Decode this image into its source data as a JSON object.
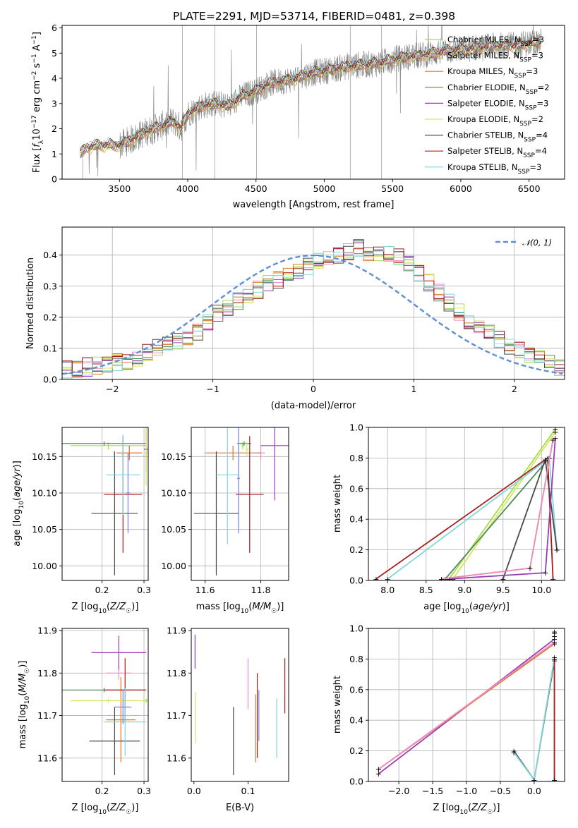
{
  "title": "PLATE=2291, MJD=53714, FIBERID=0481, z=0.398",
  "colors": {
    "chab_miles": "#a6dc4a",
    "salp_miles": "#ec8ec0",
    "krou_miles": "#e0772f",
    "chab_elodie": "#4d8b5c",
    "salp_elodie": "#9a3db5",
    "krou_elodie": "#d5e85a",
    "chab_stelib": "#4a4a4a",
    "salp_stelib": "#a81b1b",
    "krou_stelib": "#7fd6dc",
    "extra_blue": "#6f7ff0",
    "data": "#808080",
    "gauss": "#5b8fd6"
  },
  "legend": [
    {
      "key": "chab_miles",
      "text": "Chabrier MILES, N",
      "sub": "SSP",
      "val": "=3"
    },
    {
      "key": "salp_miles",
      "text": "Salpeter MILES, N",
      "sub": "SSP",
      "val": "=3"
    },
    {
      "key": "krou_miles",
      "text": "Kroupa MILES, N",
      "sub": "SSP",
      "val": "=3"
    },
    {
      "key": "chab_elodie",
      "text": "Chabrier ELODIE, N",
      "sub": "SSP",
      "val": "=2"
    },
    {
      "key": "salp_elodie",
      "text": "Salpeter ELODIE, N",
      "sub": "SSP",
      "val": "=3"
    },
    {
      "key": "krou_elodie",
      "text": "Kroupa ELODIE, N",
      "sub": "SSP",
      "val": "=2"
    },
    {
      "key": "chab_stelib",
      "text": "Chabrier STELIB, N",
      "sub": "SSP",
      "val": "=4"
    },
    {
      "key": "salp_stelib",
      "text": "Salpeter STELIB, N",
      "sub": "SSP",
      "val": "=4"
    },
    {
      "key": "krou_stelib",
      "text": "Kroupa STELIB, N",
      "sub": "SSP",
      "val": "=3"
    }
  ],
  "chart_data": [
    {
      "id": "spectrum",
      "type": "line",
      "xlabel": "wavelength [Angstrom, rest frame]",
      "ylabel": "Flux [f_λ 10^-17 erg cm^-2 s^-1 A^-1]",
      "xlim": [
        3080,
        6760
      ],
      "ylim": [
        0,
        6.1
      ],
      "xticks": [
        3500,
        4000,
        4500,
        5000,
        5500,
        6000,
        6500
      ],
      "yticks": [
        0,
        1,
        2,
        3,
        4,
        5,
        6
      ],
      "xrange_data": [
        3210,
        6590
      ],
      "continuum": [
        [
          3210,
          1.0
        ],
        [
          3260,
          1.25
        ],
        [
          3350,
          1.35
        ],
        [
          3500,
          1.35
        ],
        [
          3600,
          1.6
        ],
        [
          3700,
          1.9
        ],
        [
          3800,
          2.1
        ],
        [
          3900,
          2.3
        ],
        [
          3950,
          2.0
        ],
        [
          4000,
          2.6
        ],
        [
          4100,
          2.9
        ],
        [
          4200,
          3.0
        ],
        [
          4300,
          2.9
        ],
        [
          4400,
          3.3
        ],
        [
          4500,
          3.5
        ],
        [
          4600,
          3.8
        ],
        [
          4700,
          3.9
        ],
        [
          4800,
          4.0
        ],
        [
          4900,
          4.2
        ],
        [
          5000,
          4.3
        ],
        [
          5100,
          4.4
        ],
        [
          5200,
          4.5
        ],
        [
          5300,
          4.55
        ],
        [
          5400,
          4.6
        ],
        [
          5500,
          4.75
        ],
        [
          5600,
          4.85
        ],
        [
          5700,
          4.9
        ],
        [
          5800,
          5.0
        ],
        [
          5900,
          5.1
        ],
        [
          6000,
          5.15
        ],
        [
          6100,
          5.2
        ],
        [
          6200,
          5.25
        ],
        [
          6300,
          5.3
        ],
        [
          6400,
          5.3
        ],
        [
          6500,
          5.4
        ],
        [
          6590,
          5.45
        ]
      ],
      "grid": false,
      "legend_position": "top-right"
    },
    {
      "id": "residuals",
      "type": "histogram",
      "xlabel": "(data-model)/error",
      "ylabel": "Normed distribution",
      "xlim": [
        -2.5,
        2.5
      ],
      "ylim": [
        0,
        0.49
      ],
      "xticks": [
        -2,
        -1,
        0,
        1,
        2
      ],
      "yticks": [
        0.0,
        0.1,
        0.2,
        0.3,
        0.4
      ],
      "bin_edges_start": -2.5,
      "bin_width": 0.1,
      "base_hist": [
        0.03,
        0.035,
        0.04,
        0.045,
        0.05,
        0.055,
        0.06,
        0.07,
        0.085,
        0.1,
        0.11,
        0.12,
        0.13,
        0.15,
        0.18,
        0.21,
        0.23,
        0.25,
        0.27,
        0.29,
        0.31,
        0.32,
        0.34,
        0.35,
        0.36,
        0.38,
        0.39,
        0.4,
        0.41,
        0.42,
        0.41,
        0.41,
        0.4,
        0.39,
        0.37,
        0.34,
        0.31,
        0.28,
        0.25,
        0.22,
        0.19,
        0.17,
        0.15,
        0.13,
        0.11,
        0.09,
        0.075,
        0.065,
        0.05,
        0.04
      ],
      "legend_label": "𝒩(0, 1)",
      "grid": true,
      "legend_position": "top-right"
    },
    {
      "id": "age_vs_Z",
      "type": "errorbar",
      "xlabel": "Z [log10(Z/Z☉)]",
      "ylabel": "age  [log10(age/yr)]",
      "xlim": [
        0.105,
        0.31
      ],
      "ylim": [
        9.98,
        10.19
      ],
      "xticks": [
        0.2,
        0.3
      ],
      "yticks": [
        10.0,
        10.05,
        10.1,
        10.15
      ],
      "points": [
        {
          "key": "chab_miles",
          "x": 0.215,
          "xe": 0.09,
          "y": 10.165,
          "ye": 0.005
        },
        {
          "key": "salp_miles",
          "x": 0.265,
          "xe": 0.03,
          "y": 10.155,
          "ye": 0.01
        },
        {
          "key": "krou_miles",
          "x": 0.265,
          "xe": 0.03,
          "y": 10.155,
          "ye": 0.01
        },
        {
          "key": "chab_elodie",
          "x": 0.205,
          "xe": 0.1,
          "y": 10.168,
          "ye": 0.003
        },
        {
          "key": "salp_elodie",
          "x": 0.305,
          "xe": 0.005,
          "y": 10.16,
          "ye": 0.03
        },
        {
          "key": "krou_elodie",
          "x": 0.305,
          "xe": 0.005,
          "y": 10.155,
          "ye": 0.045
        },
        {
          "key": "chab_stelib",
          "x": 0.23,
          "xe": 0.055,
          "y": 10.072,
          "ye": 0.085
        },
        {
          "key": "salp_stelib",
          "x": 0.25,
          "xe": 0.045,
          "y": 10.098,
          "ye": 0.08
        },
        {
          "key": "krou_stelib",
          "x": 0.25,
          "xe": 0.04,
          "y": 10.125,
          "ye": 0.055
        },
        {
          "key": "extra_blue",
          "x": 0.262,
          "xe": 0.005,
          "y": 10.1,
          "ye": 0.055
        }
      ],
      "grid": true
    },
    {
      "id": "age_vs_mass",
      "type": "errorbar",
      "xlabel": "mass [log10(M/M☉)]",
      "ylabel": "",
      "xlim": [
        11.55,
        11.9
      ],
      "ylim": [
        9.98,
        10.19
      ],
      "xticks": [
        11.6,
        11.8
      ],
      "yticks": [
        10.0,
        10.05,
        10.1,
        10.15
      ],
      "points": [
        {
          "key": "chab_miles",
          "x": 11.735,
          "xe": 0.005,
          "y": 10.165,
          "ye": 0.005
        },
        {
          "key": "salp_miles",
          "x": 11.8,
          "xe": 0.015,
          "y": 10.155,
          "ye": 0.01
        },
        {
          "key": "krou_miles",
          "x": 11.7,
          "xe": 0.1,
          "y": 10.155,
          "ye": 0.01
        },
        {
          "key": "chab_elodie",
          "x": 11.74,
          "xe": 0.025,
          "y": 10.168,
          "ye": 0.003
        },
        {
          "key": "salp_elodie",
          "x": 11.85,
          "xe": 0.05,
          "y": 10.165,
          "ye": 0.075
        },
        {
          "key": "krou_elodie",
          "x": 11.75,
          "xe": 0.005,
          "y": 10.16,
          "ye": 0.01
        },
        {
          "key": "chab_stelib",
          "x": 11.64,
          "xe": 0.08,
          "y": 10.072,
          "ye": 0.085
        },
        {
          "key": "salp_stelib",
          "x": 11.76,
          "xe": 0.05,
          "y": 10.098,
          "ye": 0.08
        },
        {
          "key": "krou_stelib",
          "x": 11.68,
          "xe": 0.04,
          "y": 10.125,
          "ye": 0.095
        },
        {
          "key": "extra_blue",
          "x": 11.72,
          "xe": 0.005,
          "y": 10.12,
          "ye": 0.075
        }
      ],
      "grid": true
    },
    {
      "id": "weight_vs_age",
      "type": "line",
      "xlabel": "age  [log10(age/yr)]",
      "ylabel": "mass weight",
      "xlim": [
        7.75,
        10.3
      ],
      "ylim": [
        0,
        1.0
      ],
      "xticks": [
        8.0,
        8.5,
        9.0,
        9.5,
        10.0
      ],
      "yticks": [
        0.0,
        0.2,
        0.4,
        0.6,
        0.8,
        1.0
      ],
      "series": [
        {
          "key": "chab_miles",
          "points": [
            [
              8.8,
              0.01
            ],
            [
              10.18,
              0.99
            ]
          ]
        },
        {
          "key": "krou_elodie",
          "points": [
            [
              8.85,
              0.01
            ],
            [
              10.18,
              0.97
            ]
          ]
        },
        {
          "key": "chab_elodie",
          "points": [
            [
              8.75,
              0.01
            ],
            [
              10.1,
              0.8
            ]
          ]
        },
        {
          "key": "salp_stelib",
          "points": [
            [
              7.85,
              0.01
            ],
            [
              10.08,
              0.8
            ],
            [
              10.15,
              0.01
            ]
          ]
        },
        {
          "key": "krou_stelib",
          "points": [
            [
              8.0,
              0.01
            ],
            [
              10.1,
              0.8
            ],
            [
              10.2,
              0.2
            ]
          ]
        },
        {
          "key": "chab_stelib",
          "points": [
            [
              9.5,
              0.01
            ],
            [
              10.05,
              0.79
            ],
            [
              10.2,
              0.2
            ]
          ]
        },
        {
          "key": "salp_elodie",
          "points": [
            [
              8.8,
              0.01
            ],
            [
              10.05,
              0.05
            ],
            [
              10.18,
              0.93
            ]
          ]
        },
        {
          "key": "krou_miles",
          "points": [
            [
              8.7,
              0.01
            ],
            [
              9.85,
              0.08
            ],
            [
              10.15,
              0.92
            ]
          ]
        },
        {
          "key": "salp_miles",
          "points": [
            [
              8.7,
              0.01
            ],
            [
              9.85,
              0.08
            ],
            [
              10.15,
              0.92
            ]
          ]
        }
      ],
      "grid": true
    },
    {
      "id": "mass_vs_Z",
      "type": "errorbar",
      "xlabel": "Z [log10(Z/Z☉)]",
      "ylabel": "mass [log10(M/M☉)]",
      "xlim": [
        0.105,
        0.31
      ],
      "ylim": [
        11.545,
        11.905
      ],
      "xticks": [
        0.2,
        0.3
      ],
      "yticks": [
        11.6,
        11.7,
        11.8,
        11.9
      ],
      "points": [
        {
          "key": "chab_miles",
          "x": 0.305,
          "xe": 0.005,
          "y": 11.735,
          "ye": 0.005
        },
        {
          "key": "salp_miles",
          "x": 0.24,
          "xe": 0.03,
          "y": 11.8,
          "ye": 0.015
        },
        {
          "key": "krou_miles",
          "x": 0.245,
          "xe": 0.035,
          "y": 11.69,
          "ye": 0.1
        },
        {
          "key": "chab_elodie",
          "x": 0.205,
          "xe": 0.1,
          "y": 11.76,
          "ye": 0.005
        },
        {
          "key": "salp_elodie",
          "x": 0.24,
          "xe": 0.065,
          "y": 11.848,
          "ye": 0.04
        },
        {
          "key": "krou_elodie",
          "x": 0.215,
          "xe": 0.09,
          "y": 11.735,
          "ye": 0.005
        },
        {
          "key": "chab_stelib",
          "x": 0.23,
          "xe": 0.06,
          "y": 11.64,
          "ye": 0.08
        },
        {
          "key": "salp_stelib",
          "x": 0.255,
          "xe": 0.05,
          "y": 11.76,
          "ye": 0.075
        },
        {
          "key": "krou_stelib",
          "x": 0.255,
          "xe": 0.05,
          "y": 11.685,
          "ye": 0.08
        },
        {
          "key": "extra_blue",
          "x": 0.25,
          "xe": 0.02,
          "y": 11.72,
          "ye": 0.04
        }
      ],
      "grid": true
    },
    {
      "id": "mass_vs_ebv",
      "type": "errorbar",
      "xlabel": "E(B-V)",
      "ylabel": "",
      "xlim": [
        -0.005,
        0.175
      ],
      "ylim": [
        11.545,
        11.905
      ],
      "xticks": [
        0.0,
        0.1
      ],
      "yticks": [
        11.6,
        11.7,
        11.8,
        11.9
      ],
      "points": [
        {
          "key": "salp_elodie",
          "x": 0.002,
          "xe": 0,
          "y": 11.85,
          "ye": 0.04
        },
        {
          "key": "krou_elodie",
          "x": 0.003,
          "xe": 0,
          "y": 11.695,
          "ye": 0.06
        },
        {
          "key": "chab_stelib",
          "x": 0.073,
          "xe": 0,
          "y": 11.64,
          "ye": 0.08
        },
        {
          "key": "salp_miles",
          "x": 0.1,
          "xe": 0,
          "y": 11.775,
          "ye": 0.06
        },
        {
          "key": "krou_miles",
          "x": 0.114,
          "xe": 0,
          "y": 11.67,
          "ye": 0.08
        },
        {
          "key": "extra_blue",
          "x": 0.12,
          "xe": 0,
          "y": 11.7,
          "ye": 0.06
        },
        {
          "key": "salp_stelib",
          "x": 0.117,
          "xe": 0,
          "y": 11.7,
          "ye": 0.1
        },
        {
          "key": "krou_stelib",
          "x": 0.153,
          "xe": 0,
          "y": 11.67,
          "ye": 0.07
        },
        {
          "key": "salp_stelib",
          "x": 0.168,
          "xe": 0,
          "y": 11.77,
          "ye": 0.065
        }
      ],
      "grid": false
    },
    {
      "id": "weight_vs_Z",
      "type": "line",
      "xlabel": "Z [log10(Z/Z☉)]",
      "ylabel": "mass weight",
      "xlim": [
        -2.45,
        0.45
      ],
      "ylim": [
        0,
        1.0
      ],
      "xticks": [
        -2.0,
        -1.5,
        -1.0,
        -0.5,
        0.0
      ],
      "yticks": [
        0.0,
        0.2,
        0.4,
        0.6,
        0.8,
        1.0
      ],
      "series": [
        {
          "key": "salp_elodie",
          "points": [
            [
              -2.3,
              0.05
            ],
            [
              0.3,
              0.93
            ]
          ]
        },
        {
          "key": "krou_miles",
          "points": [
            [
              -2.3,
              0.08
            ],
            [
              0.3,
              0.9
            ]
          ]
        },
        {
          "key": "salp_miles",
          "points": [
            [
              -2.3,
              0.08
            ],
            [
              0.3,
              0.91
            ]
          ]
        },
        {
          "key": "chab_stelib",
          "points": [
            [
              -0.3,
              0.2
            ],
            [
              0.0,
              0.01
            ],
            [
              0.3,
              0.79
            ],
            [
              0.3,
              0.01
            ]
          ]
        },
        {
          "key": "krou_stelib",
          "points": [
            [
              -0.3,
              0.19
            ],
            [
              0.0,
              0.01
            ],
            [
              0.3,
              0.81
            ],
            [
              0.3,
              0.01
            ]
          ]
        },
        {
          "key": "salp_stelib",
          "points": [
            [
              0.3,
              0.8
            ],
            [
              0.3,
              0.01
            ]
          ]
        },
        {
          "key": "chab_miles",
          "points": [
            [
              0.3,
              0.98
            ],
            [
              0.3,
              0.97
            ]
          ]
        },
        {
          "key": "krou_elodie",
          "points": [
            [
              0.3,
              0.97
            ],
            [
              0.3,
              0.95
            ]
          ]
        }
      ],
      "grid": true
    }
  ]
}
